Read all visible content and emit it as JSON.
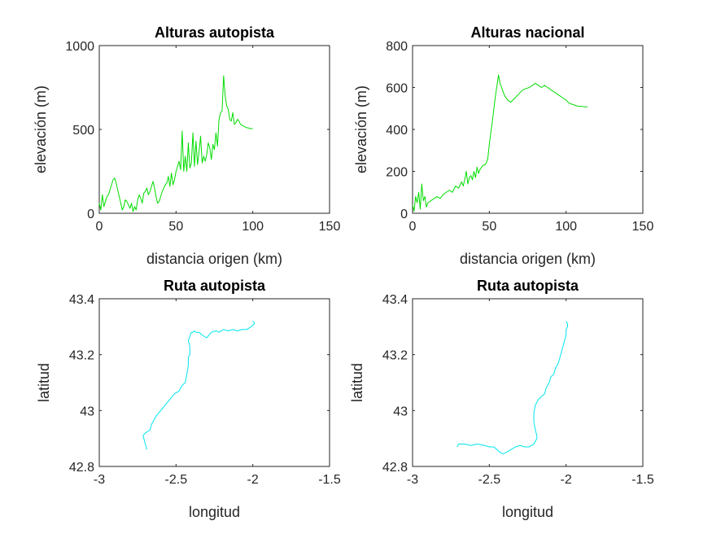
{
  "chart_data": [
    {
      "id": "p1",
      "type": "line",
      "title": "Alturas autopista",
      "xlabel": "distancia origen (km)",
      "ylabel": "elevación (m)",
      "xlim": [
        0,
        150
      ],
      "ylim": [
        0,
        1000
      ],
      "xticks": [
        0,
        50,
        100,
        150
      ],
      "yticks": [
        0,
        500,
        1000
      ],
      "grid": false,
      "series": [
        {
          "color": "#00dd00",
          "x": [
            0,
            1,
            2,
            3,
            4,
            5,
            6,
            7,
            8,
            9,
            10,
            11,
            12,
            13,
            14,
            15,
            16,
            17,
            18,
            19,
            20,
            21,
            22,
            23,
            24,
            25,
            26,
            27,
            28,
            29,
            30,
            31,
            32,
            33,
            34,
            35,
            36,
            37,
            38,
            39,
            40,
            41,
            42,
            43,
            44,
            45,
            46,
            47,
            48,
            49,
            50,
            51,
            52,
            53,
            54,
            55,
            56,
            57,
            58,
            59,
            60,
            61,
            62,
            63,
            64,
            65,
            66,
            67,
            68,
            69,
            70,
            71,
            72,
            73,
            74,
            75,
            76,
            77,
            78,
            79,
            80,
            81,
            82,
            83,
            84,
            85,
            86,
            87,
            88,
            89,
            90,
            91,
            92,
            93,
            94,
            95,
            96,
            97,
            98,
            99,
            100
          ],
          "y": [
            60,
            20,
            110,
            40,
            70,
            100,
            110,
            140,
            170,
            200,
            210,
            180,
            140,
            100,
            60,
            20,
            40,
            80,
            70,
            50,
            30,
            60,
            10,
            40,
            20,
            80,
            110,
            90,
            60,
            120,
            130,
            150,
            110,
            130,
            160,
            190,
            150,
            100,
            60,
            70,
            100,
            130,
            150,
            170,
            180,
            220,
            160,
            240,
            170,
            200,
            250,
            280,
            310,
            260,
            490,
            250,
            340,
            250,
            420,
            270,
            300,
            480,
            280,
            430,
            290,
            370,
            460,
            300,
            340,
            310,
            350,
            420,
            390,
            320,
            410,
            380,
            480,
            400,
            560,
            600,
            610,
            820,
            700,
            640,
            620,
            560,
            550,
            600,
            530,
            540,
            560,
            550,
            530,
            525,
            520,
            515,
            510,
            510,
            505,
            505,
            505
          ]
        }
      ]
    },
    {
      "id": "p2",
      "type": "line",
      "title": "Alturas nacional",
      "xlabel": "distancia origen (km)",
      "ylabel": "elevación (m)",
      "xlim": [
        0,
        150
      ],
      "ylim": [
        0,
        800
      ],
      "xticks": [
        0,
        50,
        100,
        150
      ],
      "yticks": [
        0,
        200,
        400,
        600,
        800
      ],
      "grid": false,
      "series": [
        {
          "color": "#00dd00",
          "x": [
            0,
            1,
            2,
            3,
            4,
            5,
            6,
            7,
            8,
            9,
            10,
            12,
            14,
            16,
            18,
            20,
            22,
            24,
            26,
            28,
            30,
            32,
            33,
            34,
            35,
            36,
            37,
            38,
            39,
            40,
            41,
            42,
            43,
            44,
            45,
            46,
            47,
            48,
            49,
            50,
            52,
            54,
            56,
            57,
            58,
            59,
            60,
            62,
            64,
            66,
            68,
            70,
            72,
            74,
            76,
            78,
            80,
            82,
            84,
            86,
            88,
            90,
            92,
            94,
            96,
            98,
            100,
            102,
            104,
            106,
            108,
            110,
            112,
            114
          ],
          "y": [
            40,
            10,
            80,
            50,
            100,
            20,
            140,
            60,
            80,
            30,
            50,
            60,
            70,
            80,
            70,
            90,
            100,
            110,
            100,
            130,
            120,
            150,
            130,
            160,
            200,
            140,
            170,
            180,
            160,
            200,
            170,
            220,
            190,
            210,
            220,
            230,
            230,
            240,
            260,
            330,
            440,
            560,
            660,
            620,
            600,
            580,
            560,
            540,
            530,
            545,
            560,
            575,
            590,
            595,
            600,
            610,
            620,
            610,
            600,
            610,
            600,
            590,
            580,
            570,
            560,
            550,
            540,
            525,
            520,
            515,
            510,
            510,
            508,
            508
          ]
        }
      ]
    },
    {
      "id": "p3",
      "type": "line",
      "title": "Ruta autopista",
      "xlabel": "longitud",
      "ylabel": "latitud",
      "xlim": [
        -3,
        -1.5
      ],
      "ylim": [
        42.8,
        43.4
      ],
      "xticks": [
        -3,
        -2.5,
        -2,
        -1.5
      ],
      "yticks": [
        42.8,
        43,
        43.2,
        43.4
      ],
      "grid": false,
      "series": [
        {
          "color": "#00e5ee",
          "x": [
            -2.69,
            -2.7,
            -2.71,
            -2.715,
            -2.7,
            -2.67,
            -2.66,
            -2.63,
            -2.6,
            -2.57,
            -2.54,
            -2.51,
            -2.48,
            -2.46,
            -2.44,
            -2.43,
            -2.42,
            -2.42,
            -2.41,
            -2.41,
            -2.42,
            -2.4,
            -2.39,
            -2.38,
            -2.37,
            -2.35,
            -2.33,
            -2.3,
            -2.27,
            -2.24,
            -2.22,
            -2.19,
            -2.16,
            -2.13,
            -2.1,
            -2.07,
            -2.04,
            -2.01,
            -1.99,
            -1.99,
            -2.0
          ],
          "y": [
            42.86,
            42.88,
            42.9,
            42.91,
            42.92,
            42.93,
            42.95,
            42.98,
            43.0,
            43.02,
            43.04,
            43.06,
            43.07,
            43.09,
            43.1,
            43.13,
            43.16,
            43.19,
            43.2,
            43.23,
            43.25,
            43.28,
            43.28,
            43.285,
            43.28,
            43.28,
            43.27,
            43.26,
            43.28,
            43.285,
            43.28,
            43.29,
            43.285,
            43.29,
            43.285,
            43.29,
            43.29,
            43.3,
            43.31,
            43.315,
            43.32
          ]
        }
      ]
    },
    {
      "id": "p4",
      "type": "line",
      "title": "Ruta autopista",
      "xlabel": "longitud",
      "ylabel": "latitud",
      "xlim": [
        -3,
        -1.5
      ],
      "ylim": [
        42.8,
        43.4
      ],
      "xticks": [
        -3,
        -2.5,
        -2,
        -1.5
      ],
      "yticks": [
        42.8,
        43,
        43.2,
        43.4
      ],
      "grid": false,
      "series": [
        {
          "color": "#00e5ee",
          "x": [
            -2.71,
            -2.7,
            -2.66,
            -2.62,
            -2.58,
            -2.53,
            -2.5,
            -2.47,
            -2.45,
            -2.43,
            -2.41,
            -2.39,
            -2.36,
            -2.33,
            -2.3,
            -2.27,
            -2.24,
            -2.21,
            -2.2,
            -2.19,
            -2.19,
            -2.2,
            -2.21,
            -2.21,
            -2.2,
            -2.18,
            -2.16,
            -2.14,
            -2.13,
            -2.11,
            -2.1,
            -2.08,
            -2.07,
            -2.05,
            -2.04,
            -2.03,
            -2.02,
            -2.01,
            -2.0,
            -2.0,
            -1.99,
            -1.99,
            -2.0
          ],
          "y": [
            42.87,
            42.88,
            42.88,
            42.875,
            42.88,
            42.875,
            42.87,
            42.87,
            42.86,
            42.85,
            42.845,
            42.85,
            42.86,
            42.87,
            42.875,
            42.87,
            42.87,
            42.88,
            42.89,
            42.9,
            42.91,
            42.93,
            42.96,
            42.99,
            43.02,
            43.04,
            43.05,
            43.06,
            43.08,
            43.1,
            43.12,
            43.13,
            43.15,
            43.17,
            43.19,
            43.21,
            43.23,
            43.25,
            43.27,
            43.29,
            43.3,
            43.31,
            43.32
          ]
        }
      ]
    }
  ]
}
